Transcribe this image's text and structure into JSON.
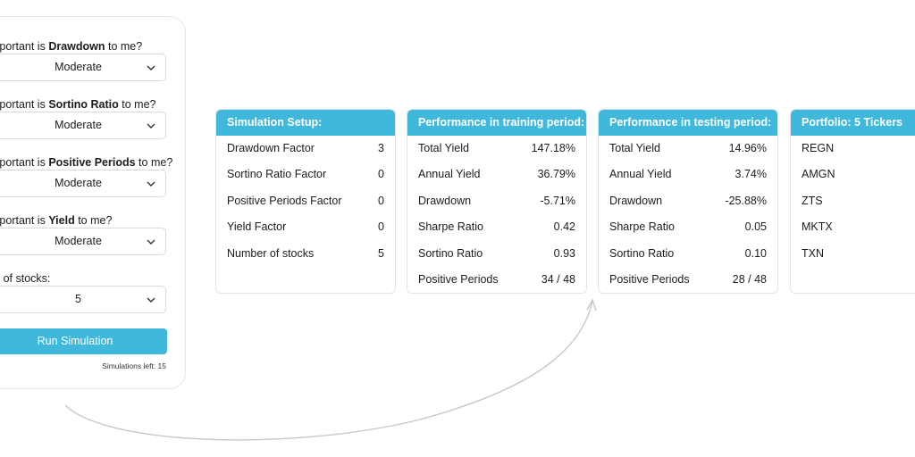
{
  "form": {
    "questions": [
      {
        "prefix": "mportant is ",
        "bold": "Drawdown",
        "suffix": " to me?",
        "value": "Moderate"
      },
      {
        "prefix": "mportant is ",
        "bold": "Sortino Ratio",
        "suffix": " to me?",
        "value": "Moderate"
      },
      {
        "prefix": "mportant is ",
        "bold": "Positive Periods",
        "suffix": " to me?",
        "value": "Moderate"
      },
      {
        "prefix": "mportant is ",
        "bold": "Yield",
        "suffix": " to me?",
        "value": "Moderate"
      }
    ],
    "stocks_label": "er of stocks:",
    "stocks_value": "5",
    "run_button": "Run Simulation",
    "simulations_left": "Simulations left: 15",
    "chevron_icon": "chevron-down-icon"
  },
  "setup": {
    "title": "Simulation Setup:",
    "rows": [
      {
        "k": "Drawdown Factor",
        "v": "3"
      },
      {
        "k": "Sortino Ratio Factor",
        "v": "0"
      },
      {
        "k": "Positive Periods Factor",
        "v": "0"
      },
      {
        "k": "Yield Factor",
        "v": "0"
      },
      {
        "k": "Number of stocks",
        "v": "5"
      }
    ]
  },
  "training": {
    "title": "Performance in training period:",
    "rows": [
      {
        "k": "Total Yield",
        "v": "147.18%"
      },
      {
        "k": "Annual Yield",
        "v": "36.79%"
      },
      {
        "k": "Drawdown",
        "v": "-5.71%"
      },
      {
        "k": "Sharpe Ratio",
        "v": "0.42"
      },
      {
        "k": "Sortino Ratio",
        "v": "0.93"
      },
      {
        "k": "Positive Periods",
        "v": "34 / 48"
      }
    ]
  },
  "testing": {
    "title": "Performance in testing period:",
    "rows": [
      {
        "k": "Total Yield",
        "v": "14.96%"
      },
      {
        "k": "Annual Yield",
        "v": "3.74%"
      },
      {
        "k": "Drawdown",
        "v": "-25.88%"
      },
      {
        "k": "Sharpe Ratio",
        "v": "0.05"
      },
      {
        "k": "Sortino Ratio",
        "v": "0.10"
      },
      {
        "k": "Positive Periods",
        "v": "28 / 48"
      }
    ]
  },
  "portfolio": {
    "title": "Portfolio: 5 Tickers",
    "tickers": [
      "REGN",
      "AMGN",
      "ZTS",
      "MKTX",
      "TXN"
    ]
  },
  "colors": {
    "accent": "#3fb8dc",
    "arrow": "#c8c8c8"
  }
}
